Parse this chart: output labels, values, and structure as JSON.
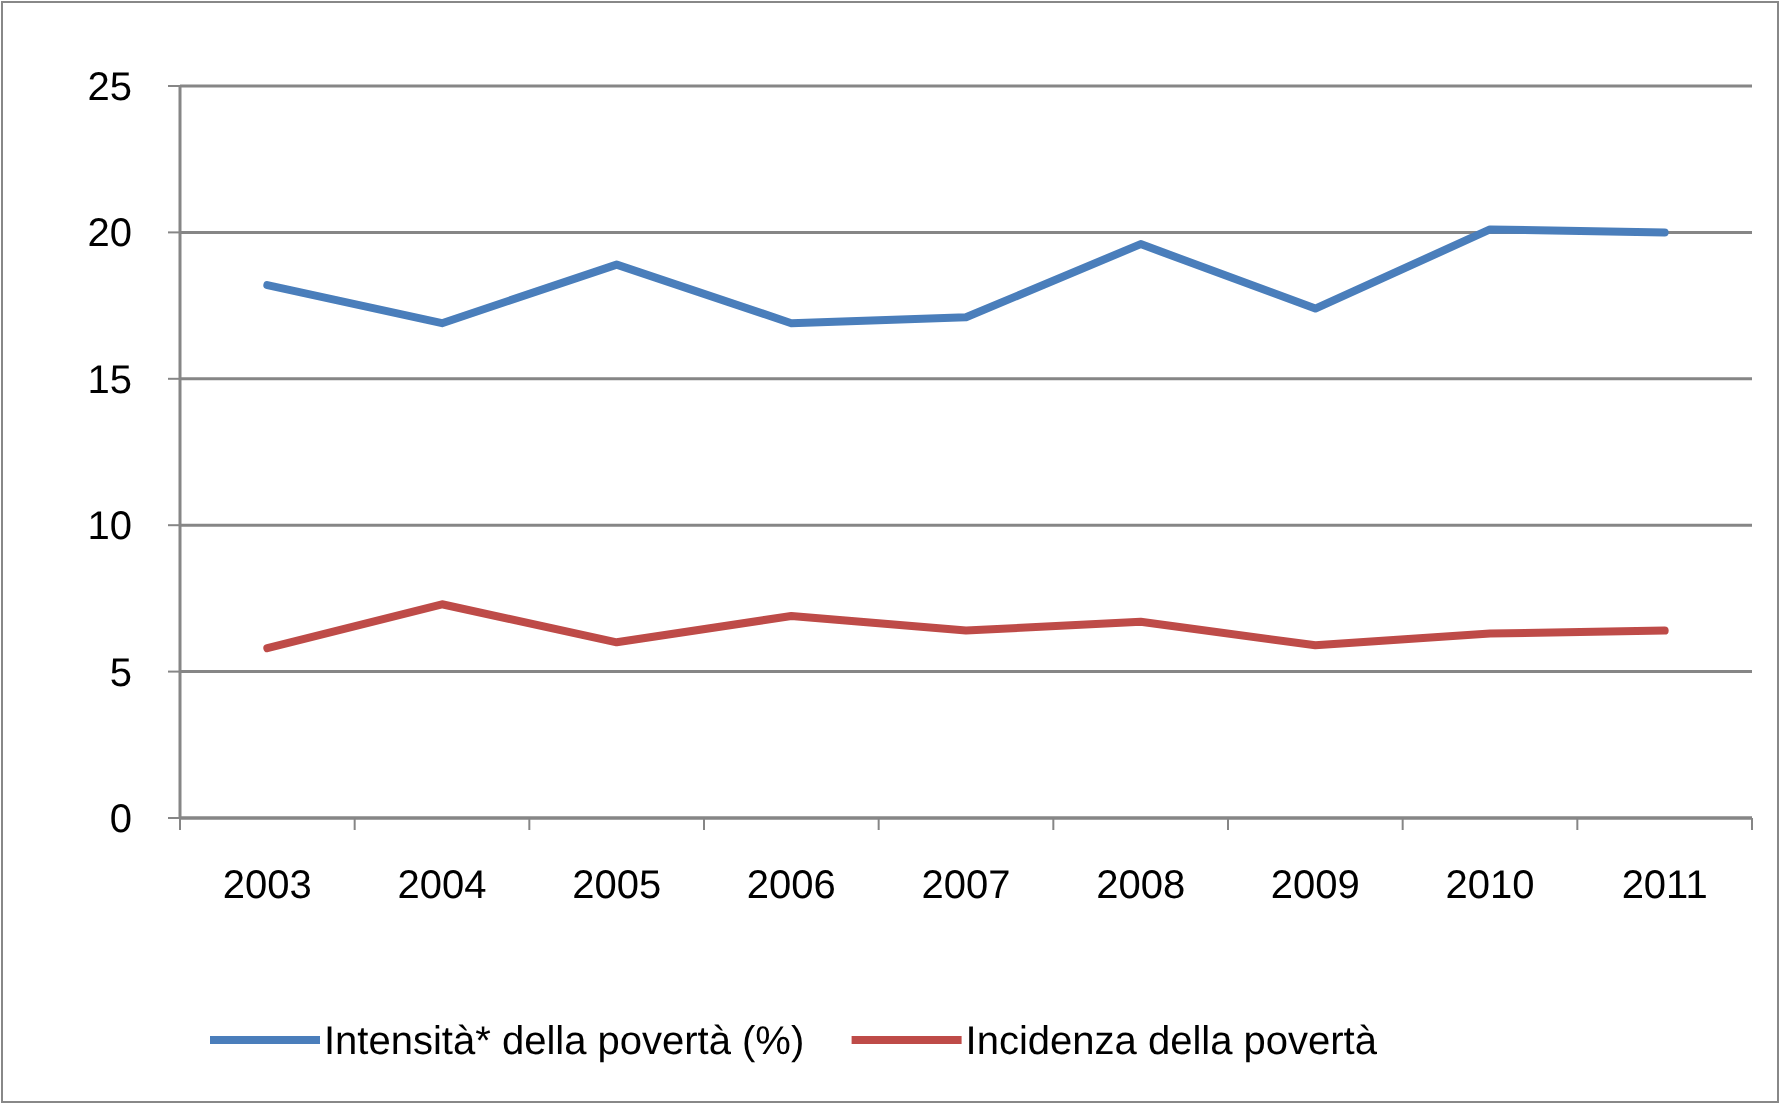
{
  "chart_data": {
    "type": "line",
    "categories": [
      "2003",
      "2004",
      "2005",
      "2006",
      "2007",
      "2008",
      "2009",
      "2010",
      "2011"
    ],
    "series": [
      {
        "name": "Intensità* della povertà (%)",
        "color": "#4a7ebb",
        "values": [
          18.2,
          16.9,
          18.9,
          16.9,
          17.1,
          19.6,
          17.4,
          20.1,
          20.0
        ]
      },
      {
        "name": "Incidenza della povertà",
        "color": "#be4b48",
        "values": [
          5.8,
          7.3,
          6.0,
          6.9,
          6.4,
          6.7,
          5.9,
          6.3,
          6.4
        ]
      }
    ],
    "ylim": [
      0,
      25
    ],
    "yticks": [
      0,
      5,
      10,
      15,
      20,
      25
    ],
    "grid": "y",
    "legend": "bottom",
    "marker": "none",
    "line_style": "solid"
  }
}
